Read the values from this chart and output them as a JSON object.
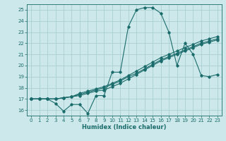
{
  "xlabel": "Humidex (Indice chaleur)",
  "bg_color": "#cce8ea",
  "grid_color": "#aacfd2",
  "line_color": "#1a6b6b",
  "xlim": [
    -0.5,
    23.5
  ],
  "ylim": [
    15.5,
    25.5
  ],
  "yticks": [
    16,
    17,
    18,
    19,
    20,
    21,
    22,
    23,
    24,
    25
  ],
  "xticks": [
    0,
    1,
    2,
    3,
    4,
    5,
    6,
    7,
    8,
    9,
    10,
    11,
    12,
    13,
    14,
    15,
    16,
    17,
    18,
    19,
    20,
    21,
    22,
    23
  ],
  "series1_x": [
    0,
    1,
    2,
    3,
    4,
    5,
    6,
    7,
    8,
    9,
    10,
    11,
    12,
    13,
    14,
    15,
    16,
    17,
    18,
    19,
    20,
    21,
    22,
    23
  ],
  "series1_y": [
    17.0,
    17.0,
    17.0,
    16.6,
    15.9,
    16.5,
    16.5,
    15.7,
    17.3,
    17.3,
    19.4,
    19.4,
    23.5,
    25.0,
    25.2,
    25.2,
    24.7,
    23.0,
    20.0,
    22.0,
    21.0,
    19.1,
    19.0,
    19.2
  ],
  "series2_x": [
    0,
    1,
    2,
    3,
    4,
    5,
    6,
    7,
    8,
    9,
    10,
    11,
    12,
    13,
    14,
    15,
    16,
    17,
    18,
    19,
    20,
    21,
    22,
    23
  ],
  "series2_y": [
    17.0,
    17.0,
    17.0,
    17.0,
    17.1,
    17.2,
    17.3,
    17.5,
    17.7,
    17.8,
    18.1,
    18.4,
    18.8,
    19.2,
    19.6,
    20.0,
    20.4,
    20.7,
    21.0,
    21.3,
    21.6,
    21.9,
    22.1,
    22.3
  ],
  "series3_x": [
    0,
    1,
    2,
    3,
    4,
    5,
    6,
    7,
    8,
    9,
    10,
    11,
    12,
    13,
    14,
    15,
    16,
    17,
    18,
    19,
    20,
    21,
    22,
    23
  ],
  "series3_y": [
    17.0,
    17.0,
    17.0,
    17.0,
    17.1,
    17.2,
    17.4,
    17.6,
    17.8,
    18.0,
    18.3,
    18.6,
    19.0,
    19.3,
    19.7,
    20.1,
    20.5,
    20.8,
    21.1,
    21.4,
    21.7,
    22.0,
    22.2,
    22.4
  ],
  "series4_x": [
    0,
    1,
    2,
    3,
    4,
    5,
    6,
    7,
    8,
    9,
    10,
    11,
    12,
    13,
    14,
    15,
    16,
    17,
    18,
    19,
    20,
    21,
    22,
    23
  ],
  "series4_y": [
    17.0,
    17.0,
    17.0,
    17.0,
    17.1,
    17.2,
    17.5,
    17.7,
    17.9,
    18.1,
    18.4,
    18.7,
    19.1,
    19.5,
    19.9,
    20.3,
    20.7,
    21.0,
    21.3,
    21.6,
    21.9,
    22.2,
    22.4,
    22.6
  ]
}
